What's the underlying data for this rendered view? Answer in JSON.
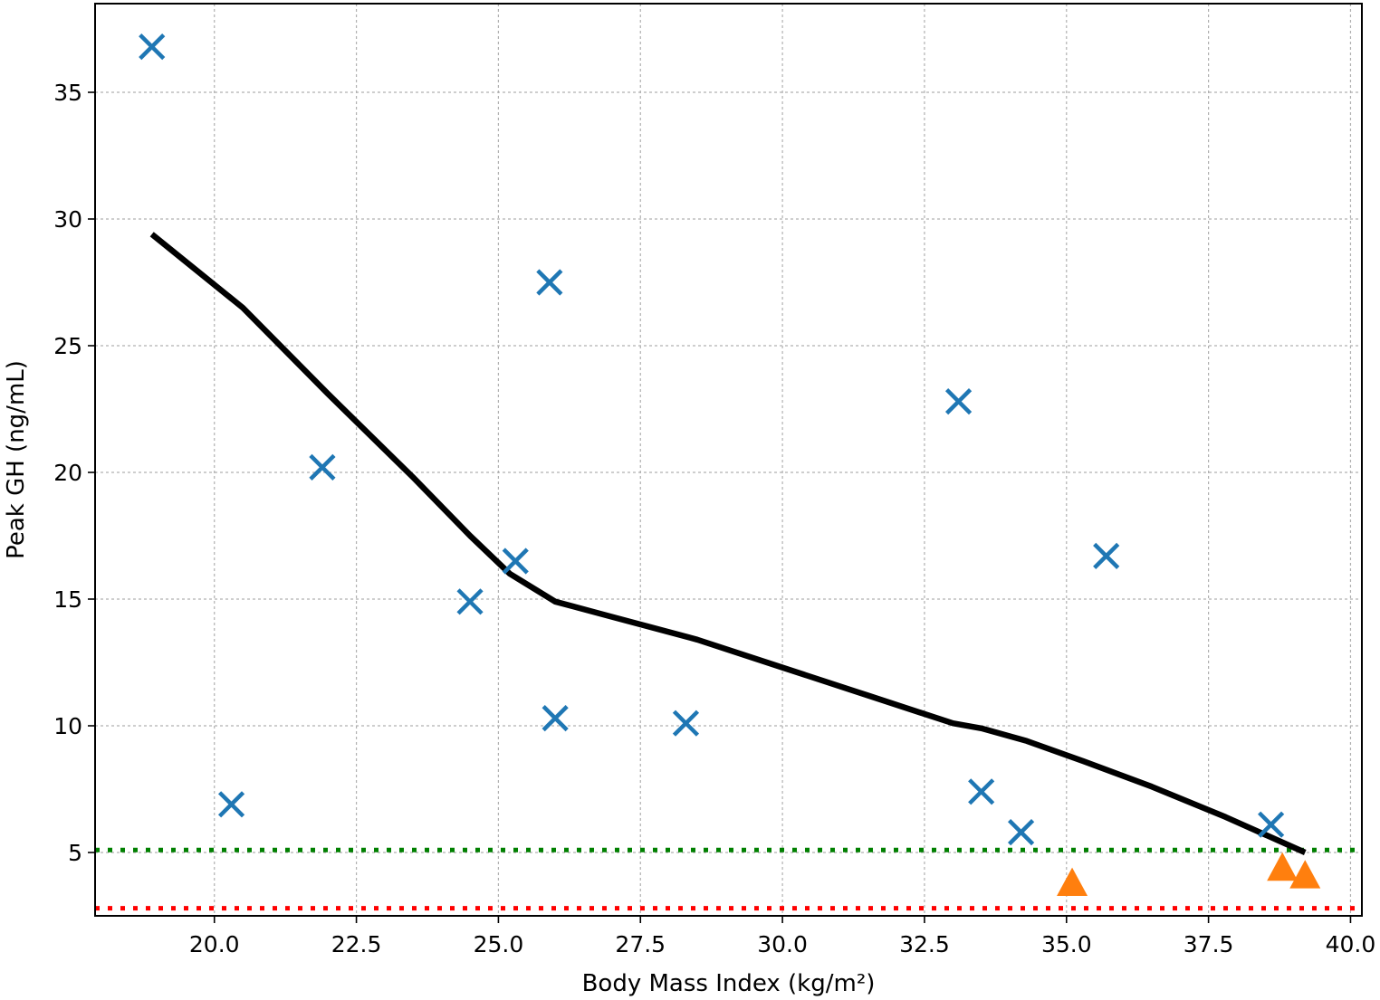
{
  "chart_data": {
    "type": "scatter",
    "xlabel": "Body Mass Index (kg/m²)",
    "ylabel": "Peak GH (ng/mL)",
    "xlim": [
      17.9,
      40.2
    ],
    "ylim": [
      2.5,
      38.5
    ],
    "xticks": [
      "20.0",
      "22.5",
      "25.0",
      "27.5",
      "30.0",
      "32.5",
      "35.0",
      "37.5",
      "40.0"
    ],
    "yticks": [
      "5",
      "10",
      "15",
      "20",
      "25",
      "30",
      "35"
    ],
    "grid": true,
    "series": [
      {
        "marker": "x",
        "color": "#1f77b4",
        "points": [
          {
            "x": 18.9,
            "y": 36.8
          },
          {
            "x": 20.3,
            "y": 6.9
          },
          {
            "x": 21.9,
            "y": 20.2
          },
          {
            "x": 24.5,
            "y": 14.9
          },
          {
            "x": 25.3,
            "y": 16.5
          },
          {
            "x": 25.9,
            "y": 27.5
          },
          {
            "x": 26.0,
            "y": 10.3
          },
          {
            "x": 28.3,
            "y": 10.1
          },
          {
            "x": 33.1,
            "y": 22.8
          },
          {
            "x": 33.5,
            "y": 7.4
          },
          {
            "x": 34.2,
            "y": 5.8
          },
          {
            "x": 35.7,
            "y": 16.7
          },
          {
            "x": 38.6,
            "y": 6.1
          }
        ]
      },
      {
        "marker": "triangle",
        "color": "#ff7f0e",
        "points": [
          {
            "x": 35.1,
            "y": 3.8
          },
          {
            "x": 38.8,
            "y": 4.4
          },
          {
            "x": 39.2,
            "y": 4.1
          }
        ]
      },
      {
        "type": "line",
        "color": "#000000",
        "points": [
          {
            "x": 18.9,
            "y": 29.4
          },
          {
            "x": 20.5,
            "y": 26.5
          },
          {
            "x": 22.0,
            "y": 23.1
          },
          {
            "x": 23.5,
            "y": 19.8
          },
          {
            "x": 24.5,
            "y": 17.5
          },
          {
            "x": 25.2,
            "y": 16.0
          },
          {
            "x": 26.0,
            "y": 14.9
          },
          {
            "x": 27.0,
            "y": 14.3
          },
          {
            "x": 28.5,
            "y": 13.4
          },
          {
            "x": 30.0,
            "y": 12.3
          },
          {
            "x": 31.5,
            "y": 11.2
          },
          {
            "x": 33.0,
            "y": 10.1
          },
          {
            "x": 33.5,
            "y": 9.9
          },
          {
            "x": 34.3,
            "y": 9.4
          },
          {
            "x": 35.3,
            "y": 8.6
          },
          {
            "x": 36.5,
            "y": 7.6
          },
          {
            "x": 37.8,
            "y": 6.4
          },
          {
            "x": 39.2,
            "y": 5.0
          }
        ]
      }
    ],
    "reference_lines": [
      {
        "axis": "y",
        "value": 5.1,
        "color": "#008000",
        "style": "dotted"
      },
      {
        "axis": "y",
        "value": 2.8,
        "color": "#ff0000",
        "style": "dotted"
      }
    ]
  }
}
